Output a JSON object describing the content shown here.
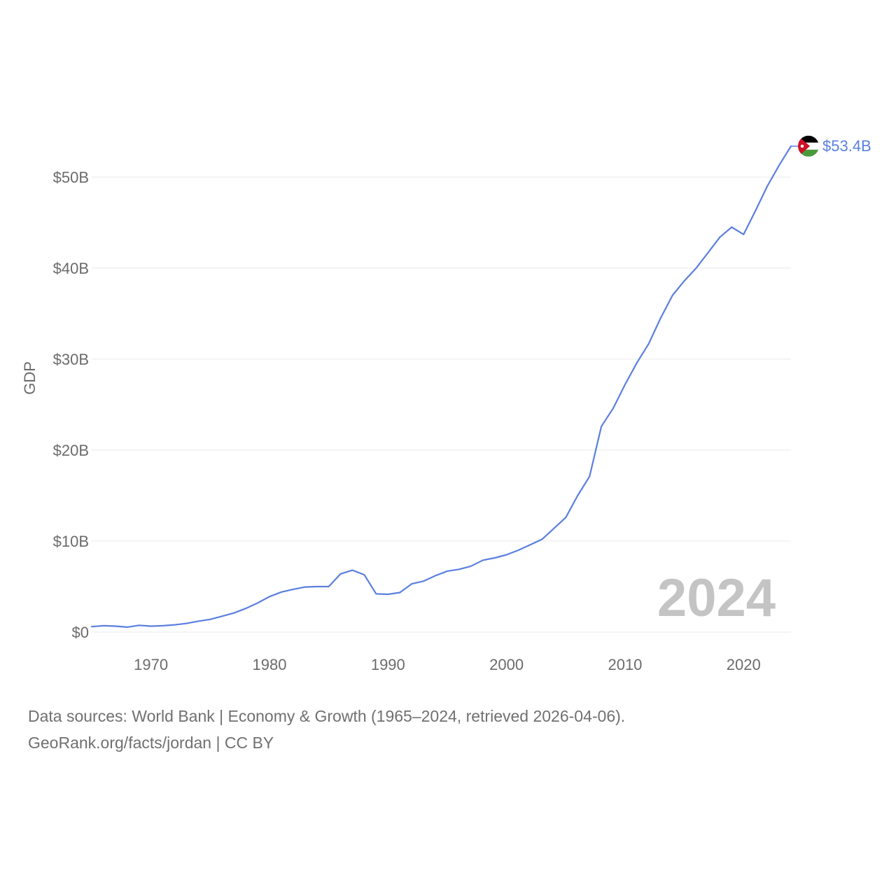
{
  "chart_data": {
    "type": "line",
    "title": "",
    "xlabel": "",
    "ylabel": "GDP",
    "year_label": "2024",
    "xlim": [
      1965,
      2024
    ],
    "ylim": [
      0,
      55
    ],
    "y_unit": "billion USD",
    "yticks": [
      {
        "value": 0,
        "label": "$0"
      },
      {
        "value": 10,
        "label": "$10B"
      },
      {
        "value": 20,
        "label": "$20B"
      },
      {
        "value": 30,
        "label": "$30B"
      },
      {
        "value": 40,
        "label": "$40B"
      },
      {
        "value": 50,
        "label": "$50B"
      }
    ],
    "xticks": [
      {
        "value": 1970,
        "label": "1970"
      },
      {
        "value": 1980,
        "label": "1980"
      },
      {
        "value": 1990,
        "label": "1990"
      },
      {
        "value": 2000,
        "label": "2000"
      },
      {
        "value": 2010,
        "label": "2010"
      },
      {
        "value": 2020,
        "label": "2020"
      }
    ],
    "series": [
      {
        "name": "Jordan",
        "color": "#5b7fe0",
        "end_label": "$53.4B",
        "flag_icon": "jordan-flag-icon",
        "x": [
          1965,
          1966,
          1967,
          1968,
          1969,
          1970,
          1971,
          1972,
          1973,
          1974,
          1975,
          1976,
          1977,
          1978,
          1979,
          1980,
          1981,
          1982,
          1983,
          1984,
          1985,
          1986,
          1987,
          1988,
          1989,
          1990,
          1991,
          1992,
          1993,
          1994,
          1995,
          1996,
          1997,
          1998,
          1999,
          2000,
          2001,
          2002,
          2003,
          2004,
          2005,
          2006,
          2007,
          2008,
          2009,
          2010,
          2011,
          2012,
          2013,
          2014,
          2015,
          2016,
          2017,
          2018,
          2019,
          2020,
          2021,
          2022,
          2023,
          2024
        ],
        "values": [
          0.6,
          0.7,
          0.65,
          0.55,
          0.75,
          0.65,
          0.7,
          0.8,
          0.95,
          1.2,
          1.4,
          1.75,
          2.1,
          2.6,
          3.2,
          3.9,
          4.4,
          4.7,
          4.95,
          5.0,
          5.0,
          6.4,
          6.8,
          6.3,
          4.2,
          4.15,
          4.35,
          5.3,
          5.6,
          6.2,
          6.7,
          6.9,
          7.25,
          7.9,
          8.15,
          8.5,
          9.0,
          9.6,
          10.2,
          11.4,
          12.6,
          15.0,
          17.1,
          22.6,
          24.6,
          27.2,
          29.6,
          31.7,
          34.5,
          37.0,
          38.6,
          40.0,
          41.7,
          43.4,
          44.5,
          43.7,
          46.3,
          49.0,
          51.3,
          53.4
        ]
      }
    ]
  },
  "footer": {
    "line1": "Data sources: World Bank | Economy & Growth (1965–2024, retrieved 2026-04-06).",
    "line2": "GeoRank.org/facts/jordan | CC BY"
  }
}
